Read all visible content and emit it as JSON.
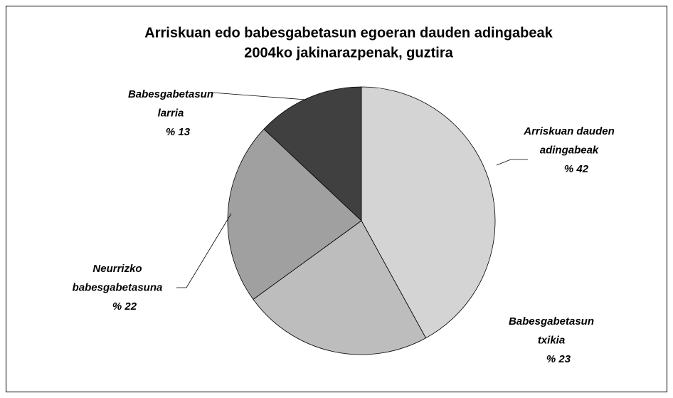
{
  "chart_data": {
    "type": "pie",
    "title": [
      "Arriskuan edo babesgabetasun egoeran dauden adingabeak",
      "2004ko jakinarazpenak, guztira"
    ],
    "categories": [
      [
        "Arriskuan dauden",
        "adingabeak"
      ],
      [
        "Babesgabetasun",
        "txikia"
      ],
      [
        "Neurrizko",
        "babesgabetasuna"
      ],
      [
        "Babesgabetasun",
        "larria"
      ]
    ],
    "values": [
      42,
      23,
      22,
      13
    ],
    "value_labels": [
      "% 42",
      "% 23",
      "% 22",
      "% 13"
    ],
    "colors": [
      "#d4d4d4",
      "#bdbdbd",
      "#a0a0a0",
      "#404040"
    ]
  }
}
